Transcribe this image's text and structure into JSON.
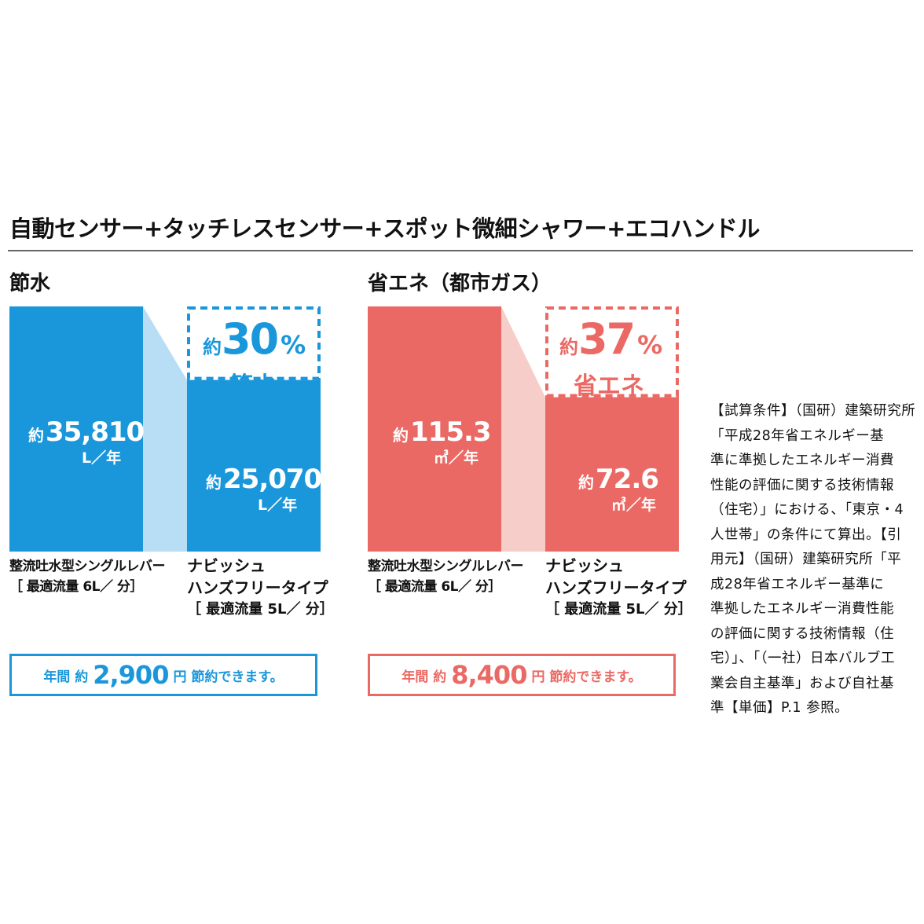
{
  "headline": "自動センサー+タッチレスセンサー+スポット微細シャワー+エコハンドル",
  "colors": {
    "water_bar": "#1a97db",
    "water_light": "#b8def5",
    "energy_bar": "#eb6964",
    "energy_light": "#f6cdc8",
    "text": "#111111"
  },
  "chart_data": [
    {
      "type": "bar",
      "title": "節水",
      "unit": "L／年",
      "categories": [
        "整流吐水型シングルレバー",
        "ナビッシュ ハンズフリータイプ"
      ],
      "values": [
        35810,
        25070
      ],
      "value_labels": [
        "35,810",
        "25,070"
      ],
      "value_prefix": "約",
      "reduction": {
        "prefix": "約",
        "value": "30",
        "symbol": "%",
        "word": "節水"
      },
      "bar_labels": [
        [
          "整流吐水型シングルレバー",
          "［ 最適流量 6L／ 分］"
        ],
        [
          "ナビッシュ",
          "ハンズフリータイプ",
          "［ 最適流量 5L／ 分］"
        ]
      ],
      "savings": {
        "prefix": "年間 約",
        "amount": "2,900",
        "suffix": "円 節約できます。"
      }
    },
    {
      "type": "bar",
      "title": "省エネ（都市ガス）",
      "unit": "㎥／年",
      "categories": [
        "整流吐水型シングルレバー",
        "ナビッシュ ハンズフリータイプ"
      ],
      "values": [
        115.3,
        72.6
      ],
      "value_labels": [
        "115.3",
        "72.6"
      ],
      "value_prefix": "約",
      "reduction": {
        "prefix": "約",
        "value": "37",
        "symbol": "%",
        "word": "省エネ"
      },
      "bar_labels": [
        [
          "整流吐水型シングルレバー",
          "［ 最適流量 6L／ 分］"
        ],
        [
          "ナビッシュ",
          "ハンズフリータイプ",
          "［ 最適流量 5L／ 分］"
        ]
      ],
      "savings": {
        "prefix": "年間 約",
        "amount": "8,400",
        "suffix": "円 節約できます。"
      }
    }
  ],
  "note_lines": [
    "【試算条件】（国研）建築研究所",
    "「平成28年省エネルギー基",
    "準に準拠したエネルギー消費",
    "性能の評価に関する技術情報",
    "（住宅）」における、「東京・4",
    "人世帯」の条件にて算出。【引",
    "用元】（国研）建築研究所「平",
    "成28年省エネルギー基準に",
    "準拠したエネルギー消費性能",
    "の評価に関する技術情報（住",
    "宅）」、「（一社）日本バルブ工",
    "業会自主基準」および自社基",
    "準【単価】P.1 参照。"
  ]
}
